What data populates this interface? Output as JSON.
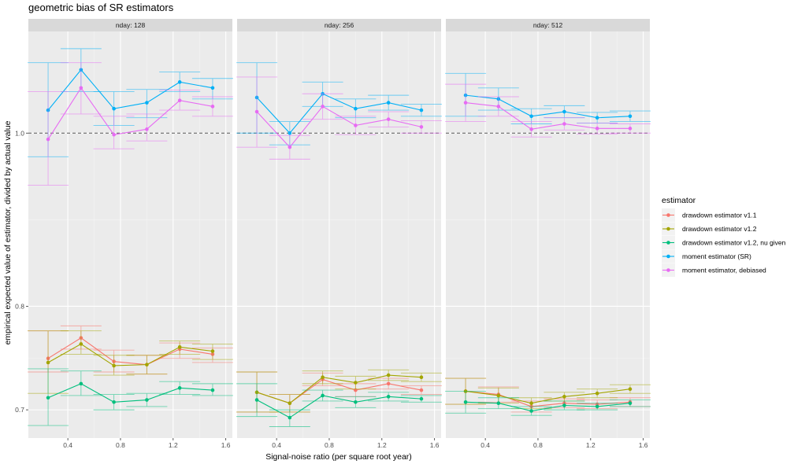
{
  "chart_data": {
    "type": "line",
    "title": "geometric bias of SR estimators",
    "xlabel": "Signal-noise ratio (per square root year)",
    "ylabel": "empirical expected value of estimator, divided by actual value",
    "y_scale": "log",
    "xlim": [
      0.1,
      1.65
    ],
    "ylim": [
      0.675,
      1.14
    ],
    "x_ticks": [
      0.4,
      0.8,
      1.2,
      1.6
    ],
    "x_tick_labels": [
      "0.4",
      "0.8",
      "1.2",
      "1.6"
    ],
    "y_ticks": [
      0.7,
      0.8,
      1.0
    ],
    "y_tick_labels": [
      "0.7",
      "0.8",
      "1.0"
    ],
    "reference_line": 1.0,
    "legend_title": "estimator",
    "legend_position": "right",
    "x": [
      0.25,
      0.5,
      0.75,
      1.0,
      1.25,
      1.5
    ],
    "series_names": [
      "drawdown estimator v1.1",
      "drawdown estimator v1.2",
      "drawdown estimator v1.2, nu given",
      "moment estimator (SR)",
      "moment estimator, debiased"
    ],
    "colors": [
      "#F8766D",
      "#A3A500",
      "#00BF7D",
      "#00B0F6",
      "#E76BF3"
    ],
    "panels": [
      {
        "label": "nday: 128",
        "series": [
          {
            "name": "drawdown estimator v1.1",
            "values": [
              0.748,
              0.768,
              0.745,
              0.742,
              0.757,
              0.752
            ],
            "lower": [
              0.735,
              0.757,
              0.735,
              0.733,
              0.748,
              0.744
            ],
            "upper": [
              0.775,
              0.78,
              0.756,
              0.751,
              0.763,
              0.758
            ]
          },
          {
            "name": "drawdown estimator v1.2",
            "values": [
              0.744,
              0.762,
              0.741,
              0.742,
              0.759,
              0.755
            ],
            "lower": [
              0.715,
              0.752,
              0.732,
              0.733,
              0.752,
              0.747
            ],
            "upper": [
              0.775,
              0.775,
              0.751,
              0.751,
              0.765,
              0.762
            ]
          },
          {
            "name": "drawdown estimator v1.2, nu given",
            "values": [
              0.711,
              0.724,
              0.707,
              0.709,
              0.72,
              0.718
            ],
            "lower": [
              0.686,
              0.713,
              0.7,
              0.703,
              0.714,
              0.713
            ],
            "upper": [
              0.738,
              0.736,
              0.714,
              0.715,
              0.726,
              0.724
            ]
          },
          {
            "name": "moment estimator (SR)",
            "values": [
              1.03,
              1.085,
              1.032,
              1.04,
              1.068,
              1.06
            ],
            "lower": [
              0.97,
              1.055,
              1.01,
              1.02,
              1.055,
              1.045
            ],
            "upper": [
              1.095,
              1.115,
              1.055,
              1.058,
              1.082,
              1.073
            ]
          },
          {
            "name": "moment estimator, debiased",
            "values": [
              0.992,
              1.06,
              0.998,
              1.005,
              1.043,
              1.035
            ],
            "lower": [
              0.935,
              1.025,
              0.98,
              0.99,
              1.03,
              1.022
            ],
            "upper": [
              1.055,
              1.095,
              1.022,
              1.025,
              1.057,
              1.048
            ]
          }
        ]
      },
      {
        "label": "nday: 256",
        "series": [
          {
            "name": "drawdown estimator v1.1",
            "values": [
              0.716,
              0.706,
              0.728,
              0.718,
              0.724,
              0.718
            ],
            "lower": [
              0.698,
              0.698,
              0.722,
              0.712,
              0.719,
              0.714
            ],
            "upper": [
              0.735,
              0.714,
              0.734,
              0.724,
              0.729,
              0.722
            ]
          },
          {
            "name": "drawdown estimator v1.2",
            "values": [
              0.716,
              0.706,
              0.73,
              0.725,
              0.732,
              0.73
            ],
            "lower": [
              0.698,
              0.698,
              0.724,
              0.719,
              0.727,
              0.726
            ],
            "upper": [
              0.735,
              0.714,
              0.736,
              0.731,
              0.737,
              0.734
            ]
          },
          {
            "name": "drawdown estimator v1.2, nu given",
            "values": [
              0.709,
              0.693,
              0.713,
              0.707,
              0.712,
              0.71
            ],
            "lower": [
              0.694,
              0.685,
              0.708,
              0.702,
              0.708,
              0.707
            ],
            "upper": [
              0.724,
              0.7,
              0.718,
              0.712,
              0.716,
              0.713
            ]
          },
          {
            "name": "moment estimator (SR)",
            "values": [
              1.047,
              1.0,
              1.052,
              1.032,
              1.04,
              1.03
            ],
            "lower": [
              1.0,
              0.985,
              1.035,
              1.02,
              1.03,
              1.022
            ],
            "upper": [
              1.095,
              1.015,
              1.068,
              1.045,
              1.05,
              1.038
            ]
          },
          {
            "name": "moment estimator, debiased",
            "values": [
              1.028,
              0.982,
              1.035,
              1.01,
              1.018,
              1.008
            ],
            "lower": [
              0.982,
              0.967,
              1.018,
              0.998,
              1.008,
              1.0
            ],
            "upper": [
              1.075,
              0.997,
              1.052,
              1.022,
              1.028,
              1.016
            ]
          }
        ]
      },
      {
        "label": "nday: 512",
        "series": [
          {
            "name": "drawdown estimator v1.1",
            "values": [
              0.717,
              0.714,
              0.703,
              0.706,
              0.705,
              0.707
            ],
            "lower": [
              0.705,
              0.707,
              0.698,
              0.702,
              0.701,
              0.703
            ],
            "upper": [
              0.729,
              0.721,
              0.708,
              0.71,
              0.709,
              0.711
            ]
          },
          {
            "name": "drawdown estimator v1.2",
            "values": [
              0.717,
              0.713,
              0.706,
              0.712,
              0.715,
              0.719
            ],
            "lower": [
              0.705,
              0.706,
              0.701,
              0.708,
              0.711,
              0.715
            ],
            "upper": [
              0.729,
              0.72,
              0.711,
              0.716,
              0.719,
              0.723
            ]
          },
          {
            "name": "drawdown estimator v1.2, nu given",
            "values": [
              0.707,
              0.706,
              0.699,
              0.704,
              0.703,
              0.706
            ],
            "lower": [
              0.697,
              0.701,
              0.695,
              0.7,
              0.7,
              0.703
            ],
            "upper": [
              0.717,
              0.711,
              0.703,
              0.708,
              0.706,
              0.709
            ]
          },
          {
            "name": "moment estimator (SR)",
            "values": [
              1.05,
              1.045,
              1.022,
              1.028,
              1.02,
              1.022
            ],
            "lower": [
              1.022,
              1.03,
              1.012,
              1.02,
              1.013,
              1.015
            ],
            "upper": [
              1.08,
              1.06,
              1.032,
              1.036,
              1.027,
              1.029
            ]
          },
          {
            "name": "moment estimator, debiased",
            "values": [
              1.04,
              1.035,
              1.005,
              1.012,
              1.006,
              1.006
            ],
            "lower": [
              1.015,
              1.022,
              0.995,
              1.004,
              0.999,
              1.0
            ],
            "upper": [
              1.065,
              1.048,
              1.015,
              1.02,
              1.013,
              1.012
            ]
          }
        ]
      }
    ]
  }
}
